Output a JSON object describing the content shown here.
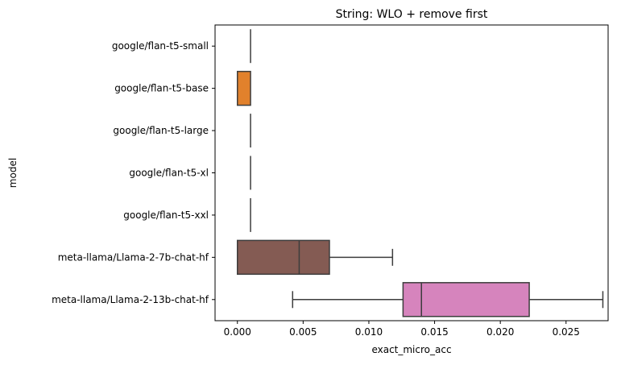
{
  "chart_data": {
    "type": "boxplot",
    "title": "String: WLO + remove first",
    "xlabel": "exact_micro_acc",
    "ylabel": "model",
    "xlim": [
      -0.0017,
      0.0282
    ],
    "xticks": [
      "0.000",
      "0.005",
      "0.010",
      "0.015",
      "0.020",
      "0.025"
    ],
    "xtick_values": [
      0.0,
      0.005,
      0.01,
      0.015,
      0.02,
      0.025
    ],
    "grid": false,
    "categories": [
      "google/flan-t5-small",
      "google/flan-t5-base",
      "google/flan-t5-large",
      "google/flan-t5-xl",
      "google/flan-t5-xxl",
      "meta-llama/Llama-2-7b-chat-hf",
      "meta-llama/Llama-2-13b-chat-hf"
    ],
    "series": [
      {
        "category": "google/flan-t5-small",
        "min": 0.001,
        "q1": 0.001,
        "median": 0.001,
        "q3": 0.001,
        "max": 0.001,
        "color": "#3274a1"
      },
      {
        "category": "google/flan-t5-base",
        "min": 0.0,
        "q1": 0.0,
        "median": 0.0,
        "q3": 0.001,
        "max": 0.001,
        "color": "#e1812c"
      },
      {
        "category": "google/flan-t5-large",
        "min": 0.001,
        "q1": 0.001,
        "median": 0.001,
        "q3": 0.001,
        "max": 0.001,
        "color": "#3a923a"
      },
      {
        "category": "google/flan-t5-xl",
        "min": 0.001,
        "q1": 0.001,
        "median": 0.001,
        "q3": 0.001,
        "max": 0.001,
        "color": "#c03d3e"
      },
      {
        "category": "google/flan-t5-xxl",
        "min": 0.001,
        "q1": 0.001,
        "median": 0.001,
        "q3": 0.001,
        "max": 0.001,
        "color": "#9372b2"
      },
      {
        "category": "meta-llama/Llama-2-7b-chat-hf",
        "min": 0.0,
        "q1": 0.0,
        "median": 0.0047,
        "q3": 0.007,
        "max": 0.0118,
        "color": "#845b53"
      },
      {
        "category": "meta-llama/Llama-2-13b-chat-hf",
        "min": 0.0042,
        "q1": 0.0126,
        "median": 0.014,
        "q3": 0.0222,
        "max": 0.0278,
        "color": "#d684bd"
      }
    ],
    "line_color": "#3d3d3d"
  }
}
